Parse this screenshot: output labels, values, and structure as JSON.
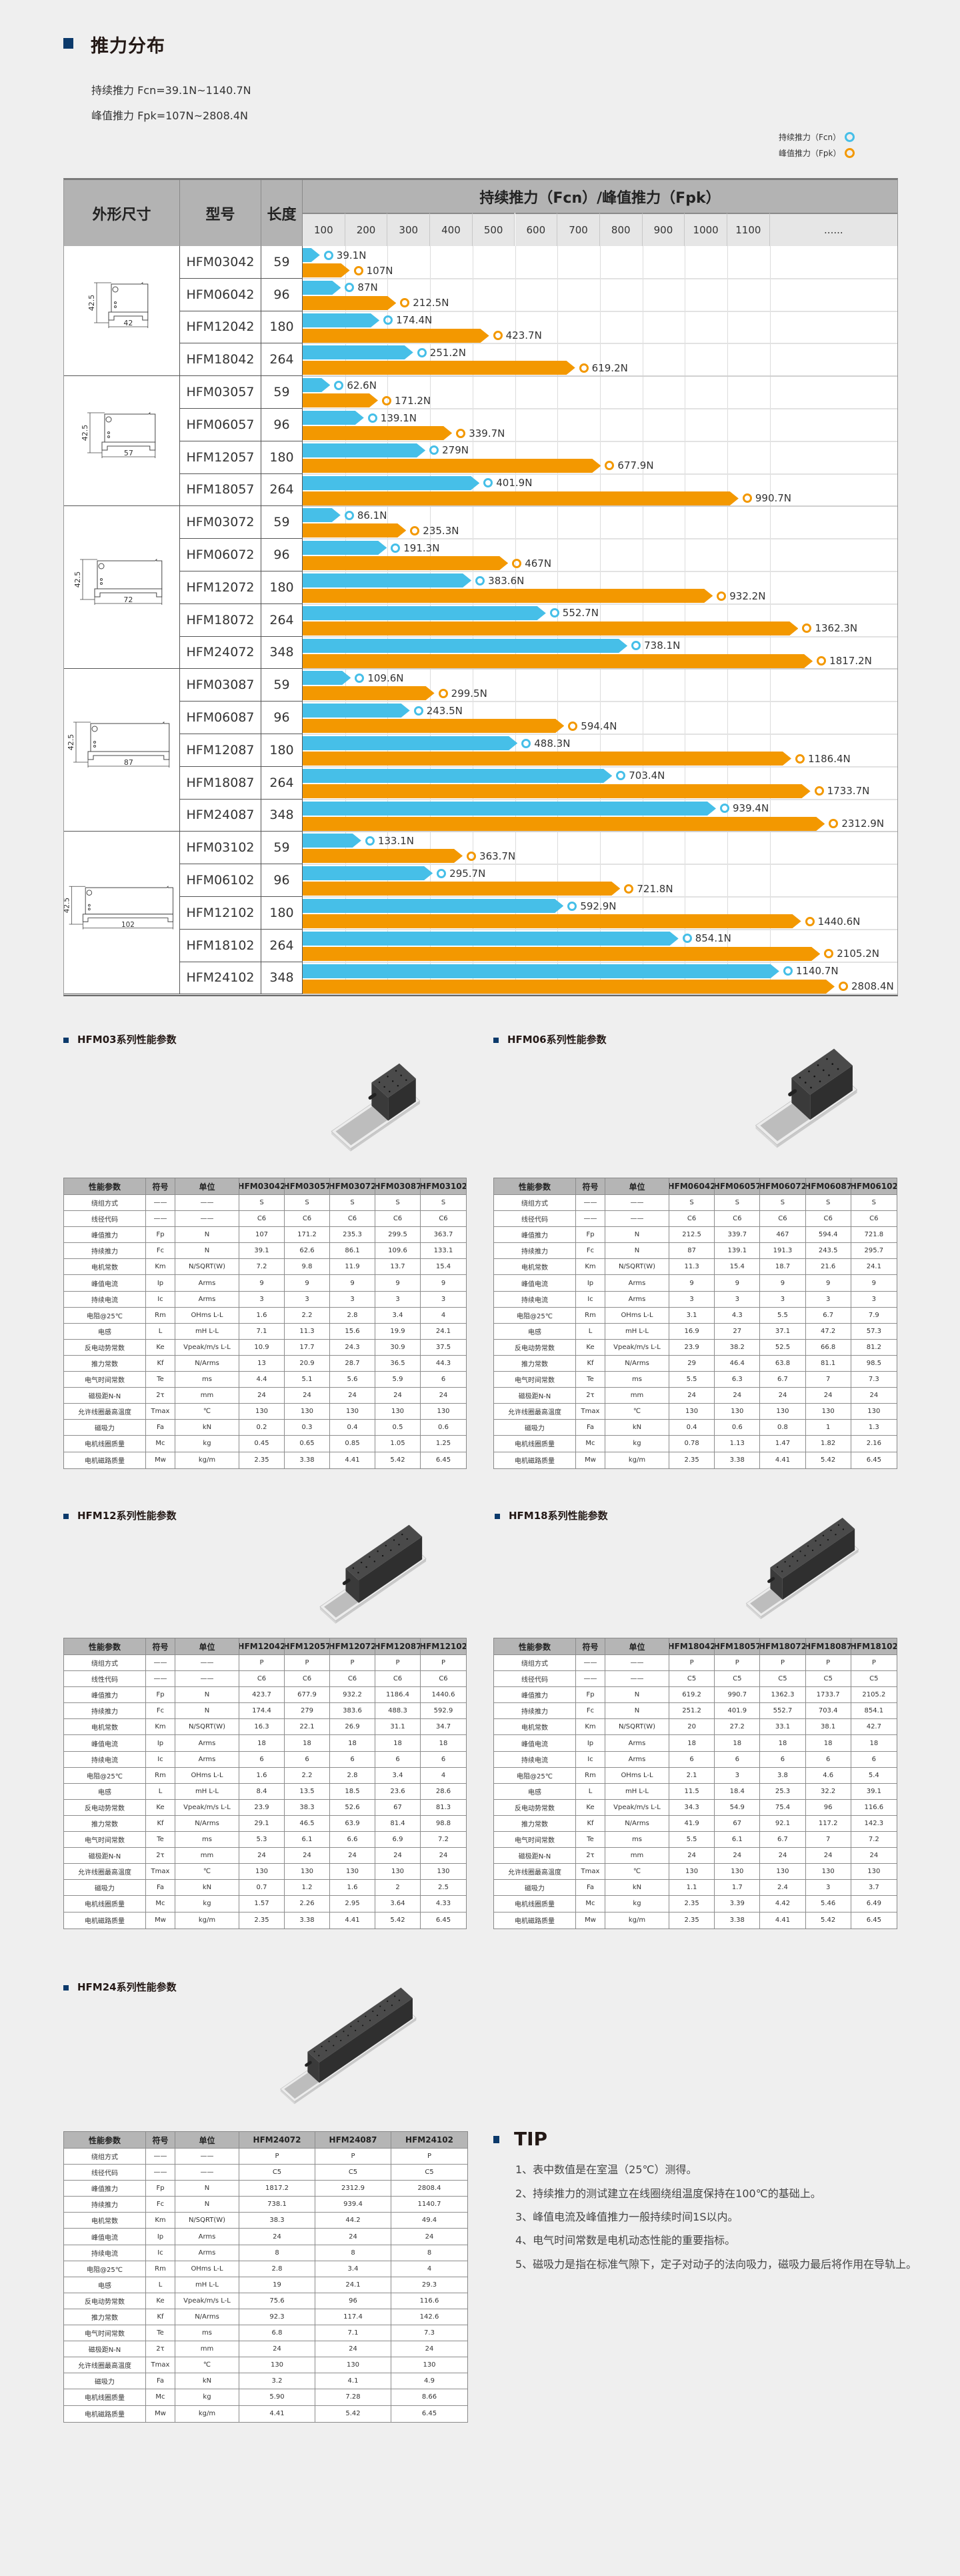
{
  "header": {
    "title": "推力分布",
    "fcn_range": "持续推力 Fcn=39.1N~1140.7N",
    "fpk_range": "峰值推力 Fpk=107N~2808.4N",
    "legend": [
      {
        "label": "持续推力（Fcn）",
        "color": "#46bfe8"
      },
      {
        "label": "峰值推力（Fpk）",
        "color": "#f39800"
      }
    ]
  },
  "chart_data": {
    "type": "bar",
    "title": "持续推力（Fcn）/峰值推力（Fpk）",
    "columns": {
      "shape": "外形尺寸",
      "model": "型号",
      "length": "长度"
    },
    "x_ticks": [
      "100",
      "200",
      "300",
      "400",
      "500",
      "600",
      "700",
      "800",
      "900",
      "1000",
      "1100",
      "......"
    ],
    "unit": "N",
    "orientation": "horizontal",
    "series": [
      {
        "key": "fcn",
        "name": "持续推力（Fcn）",
        "color": "#46bfe8"
      },
      {
        "key": "fpk",
        "name": "峰值推力（Fpk）",
        "color": "#f39800"
      }
    ],
    "groups": [
      {
        "dims": {
          "width": "42",
          "height": "42.5"
        },
        "rows": [
          {
            "model": "HFM03042",
            "length": "59",
            "fcn": 39.1,
            "fpk": 107
          },
          {
            "model": "HFM06042",
            "length": "96",
            "fcn": 87,
            "fpk": 212.5
          },
          {
            "model": "HFM12042",
            "length": "180",
            "fcn": 174.4,
            "fpk": 423.7
          },
          {
            "model": "HFM18042",
            "length": "264",
            "fcn": 251.2,
            "fpk": 619.2
          }
        ]
      },
      {
        "dims": {
          "width": "57",
          "height": "42.5"
        },
        "rows": [
          {
            "model": "HFM03057",
            "length": "59",
            "fcn": 62.6,
            "fpk": 171.2
          },
          {
            "model": "HFM06057",
            "length": "96",
            "fcn": 139.1,
            "fpk": 339.7
          },
          {
            "model": "HFM12057",
            "length": "180",
            "fcn": 279,
            "fpk": 677.9
          },
          {
            "model": "HFM18057",
            "length": "264",
            "fcn": 401.9,
            "fpk": 990.7
          }
        ]
      },
      {
        "dims": {
          "width": "72",
          "height": "42.5"
        },
        "rows": [
          {
            "model": "HFM03072",
            "length": "59",
            "fcn": 86.1,
            "fpk": 235.3
          },
          {
            "model": "HFM06072",
            "length": "96",
            "fcn": 191.3,
            "fpk": 467
          },
          {
            "model": "HFM12072",
            "length": "180",
            "fcn": 383.6,
            "fpk": 932.2
          },
          {
            "model": "HFM18072",
            "length": "264",
            "fcn": 552.7,
            "fpk": 1362.3
          },
          {
            "model": "HFM24072",
            "length": "348",
            "fcn": 738.1,
            "fpk": 1817.2
          }
        ]
      },
      {
        "dims": {
          "width": "87",
          "height": "42.5"
        },
        "rows": [
          {
            "model": "HFM03087",
            "length": "59",
            "fcn": 109.6,
            "fpk": 299.5
          },
          {
            "model": "HFM06087",
            "length": "96",
            "fcn": 243.5,
            "fpk": 594.4
          },
          {
            "model": "HFM12087",
            "length": "180",
            "fcn": 488.3,
            "fpk": 1186.4
          },
          {
            "model": "HFM18087",
            "length": "264",
            "fcn": 703.4,
            "fpk": 1733.7
          },
          {
            "model": "HFM24087",
            "length": "348",
            "fcn": 939.4,
            "fpk": 2312.9
          }
        ]
      },
      {
        "dims": {
          "width": "102",
          "height": "42.5"
        },
        "rows": [
          {
            "model": "HFM03102",
            "length": "59",
            "fcn": 133.1,
            "fpk": 363.7
          },
          {
            "model": "HFM06102",
            "length": "96",
            "fcn": 295.7,
            "fpk": 721.8
          },
          {
            "model": "HFM12102",
            "length": "180",
            "fcn": 592.9,
            "fpk": 1440.6
          },
          {
            "model": "HFM18102",
            "length": "264",
            "fcn": 854.1,
            "fpk": 2105.2
          },
          {
            "model": "HFM24102",
            "length": "348",
            "fcn": 1140.7,
            "fpk": 2808.4
          }
        ]
      }
    ]
  },
  "spec_tables": [
    {
      "title": "HFM03系列性能参数",
      "head": [
        "性能参数",
        "符号",
        "单位",
        "HFM03042",
        "HFM03057",
        "HFM03072",
        "HFM03087",
        "HFM03102"
      ],
      "rows": [
        [
          "绕组方式",
          "——",
          "——",
          "S",
          "S",
          "S",
          "S",
          "S"
        ],
        [
          "线径代码",
          "——",
          "——",
          "C6",
          "C6",
          "C6",
          "C6",
          "C6"
        ],
        [
          "峰值推力",
          "Fp",
          "N",
          "107",
          "171.2",
          "235.3",
          "299.5",
          "363.7"
        ],
        [
          "持续推力",
          "Fc",
          "N",
          "39.1",
          "62.6",
          "86.1",
          "109.6",
          "133.1"
        ],
        [
          "电机常数",
          "Km",
          "N/SQRT(W)",
          "7.2",
          "9.8",
          "11.9",
          "13.7",
          "15.4"
        ],
        [
          "峰值电流",
          "Ip",
          "Arms",
          "9",
          "9",
          "9",
          "9",
          "9"
        ],
        [
          "持续电流",
          "Ic",
          "Arms",
          "3",
          "3",
          "3",
          "3",
          "3"
        ],
        [
          "电阻@25℃",
          "Rm",
          "OHms L-L",
          "1.6",
          "2.2",
          "2.8",
          "3.4",
          "4"
        ],
        [
          "电感",
          "L",
          "mH L-L",
          "7.1",
          "11.3",
          "15.6",
          "19.9",
          "24.1"
        ],
        [
          "反电动势常数",
          "Ke",
          "Vpeak/m/s L-L",
          "10.9",
          "17.7",
          "24.3",
          "30.9",
          "37.5"
        ],
        [
          "推力常数",
          "Kf",
          "N/Arms",
          "13",
          "20.9",
          "28.7",
          "36.5",
          "44.3"
        ],
        [
          "电气时间常数",
          "Te",
          "ms",
          "4.4",
          "5.1",
          "5.6",
          "5.9",
          "6"
        ],
        [
          "磁极距N-N",
          "2τ",
          "mm",
          "24",
          "24",
          "24",
          "24",
          "24"
        ],
        [
          "允许线圈最高温度",
          "Tmax",
          "℃",
          "130",
          "130",
          "130",
          "130",
          "130"
        ],
        [
          "磁吸力",
          "Fa",
          "kN",
          "0.2",
          "0.3",
          "0.4",
          "0.5",
          "0.6"
        ],
        [
          "电机线圈质量",
          "Mc",
          "kg",
          "0.45",
          "0.65",
          "0.85",
          "1.05",
          "1.25"
        ],
        [
          "电机磁路质量",
          "Mw",
          "kg/m",
          "2.35",
          "3.38",
          "4.41",
          "5.42",
          "6.45"
        ]
      ]
    },
    {
      "title": "HFM06系列性能参数",
      "head": [
        "性能参数",
        "符号",
        "单位",
        "HFM06042",
        "HFM06057",
        "HFM06072",
        "HFM06087",
        "HFM06102"
      ],
      "rows": [
        [
          "绕组方式",
          "——",
          "——",
          "S",
          "S",
          "S",
          "S",
          "S"
        ],
        [
          "线径代码",
          "——",
          "——",
          "C6",
          "C6",
          "C6",
          "C6",
          "C6"
        ],
        [
          "峰值推力",
          "Fp",
          "N",
          "212.5",
          "339.7",
          "467",
          "594.4",
          "721.8"
        ],
        [
          "持续推力",
          "Fc",
          "N",
          "87",
          "139.1",
          "191.3",
          "243.5",
          "295.7"
        ],
        [
          "电机常数",
          "Km",
          "N/SQRT(W)",
          "11.3",
          "15.4",
          "18.7",
          "21.6",
          "24.1"
        ],
        [
          "峰值电流",
          "Ip",
          "Arms",
          "9",
          "9",
          "9",
          "9",
          "9"
        ],
        [
          "持续电流",
          "Ic",
          "Arms",
          "3",
          "3",
          "3",
          "3",
          "3"
        ],
        [
          "电阻@25℃",
          "Rm",
          "OHms L-L",
          "3.1",
          "4.3",
          "5.5",
          "6.7",
          "7.9"
        ],
        [
          "电感",
          "L",
          "mH L-L",
          "16.9",
          "27",
          "37.1",
          "47.2",
          "57.3"
        ],
        [
          "反电动势常数",
          "Ke",
          "Vpeak/m/s L-L",
          "23.9",
          "38.2",
          "52.5",
          "66.8",
          "81.2"
        ],
        [
          "推力常数",
          "Kf",
          "N/Arms",
          "29",
          "46.4",
          "63.8",
          "81.1",
          "98.5"
        ],
        [
          "电气时间常数",
          "Te",
          "ms",
          "5.5",
          "6.3",
          "6.7",
          "7",
          "7.3"
        ],
        [
          "磁极距N-N",
          "2τ",
          "mm",
          "24",
          "24",
          "24",
          "24",
          "24"
        ],
        [
          "允许线圈最高温度",
          "Tmax",
          "℃",
          "130",
          "130",
          "130",
          "130",
          "130"
        ],
        [
          "磁吸力",
          "Fa",
          "kN",
          "0.4",
          "0.6",
          "0.8",
          "1",
          "1.3"
        ],
        [
          "电机线圈质量",
          "Mc",
          "kg",
          "0.78",
          "1.13",
          "1.47",
          "1.82",
          "2.16"
        ],
        [
          "电机磁路质量",
          "Mw",
          "kg/m",
          "2.35",
          "3.38",
          "4.41",
          "5.42",
          "6.45"
        ]
      ]
    },
    {
      "title": "HFM12系列性能参数",
      "head": [
        "性能参数",
        "符号",
        "单位",
        "HFM12042",
        "HFM12057",
        "HFM12072",
        "HFM12087",
        "HFM12102"
      ],
      "rows": [
        [
          "绕组方式",
          "——",
          "——",
          "P",
          "P",
          "P",
          "P",
          "P"
        ],
        [
          "线性代码",
          "——",
          "——",
          "C6",
          "C6",
          "C6",
          "C6",
          "C6"
        ],
        [
          "峰值推力",
          "Fp",
          "N",
          "423.7",
          "677.9",
          "932.2",
          "1186.4",
          "1440.6"
        ],
        [
          "持续推力",
          "Fc",
          "N",
          "174.4",
          "279",
          "383.6",
          "488.3",
          "592.9"
        ],
        [
          "电机常数",
          "Km",
          "N/SQRT(W)",
          "16.3",
          "22.1",
          "26.9",
          "31.1",
          "34.7"
        ],
        [
          "峰值电流",
          "Ip",
          "Arms",
          "18",
          "18",
          "18",
          "18",
          "18"
        ],
        [
          "持续电流",
          "Ic",
          "Arms",
          "6",
          "6",
          "6",
          "6",
          "6"
        ],
        [
          "电阻@25℃",
          "Rm",
          "OHms L-L",
          "1.6",
          "2.2",
          "2.8",
          "3.4",
          "4"
        ],
        [
          "电感",
          "L",
          "mH L-L",
          "8.4",
          "13.5",
          "18.5",
          "23.6",
          "28.6"
        ],
        [
          "反电动势常数",
          "Ke",
          "Vpeak/m/s L-L",
          "23.9",
          "38.3",
          "52.6",
          "67",
          "81.3"
        ],
        [
          "推力常数",
          "Kf",
          "N/Arms",
          "29.1",
          "46.5",
          "63.9",
          "81.4",
          "98.8"
        ],
        [
          "电气时间常数",
          "Te",
          "ms",
          "5.3",
          "6.1",
          "6.6",
          "6.9",
          "7.2"
        ],
        [
          "磁极距N-N",
          "2τ",
          "mm",
          "24",
          "24",
          "24",
          "24",
          "24"
        ],
        [
          "允许线圈最高温度",
          "Tmax",
          "℃",
          "130",
          "130",
          "130",
          "130",
          "130"
        ],
        [
          "磁吸力",
          "Fa",
          "kN",
          "0.7",
          "1.2",
          "1.6",
          "2",
          "2.5"
        ],
        [
          "电机线圈质量",
          "Mc",
          "kg",
          "1.57",
          "2.26",
          "2.95",
          "3.64",
          "4.33"
        ],
        [
          "电机磁路质量",
          "Mw",
          "kg/m",
          "2.35",
          "3.38",
          "4.41",
          "5.42",
          "6.45"
        ]
      ]
    },
    {
      "title": "HFM18系列性能参数",
      "head": [
        "性能参数",
        "符号",
        "单位",
        "HFM18042",
        "HFM18057",
        "HFM18072",
        "HFM18087",
        "HFM18102"
      ],
      "rows": [
        [
          "绕组方式",
          "——",
          "——",
          "P",
          "P",
          "P",
          "P",
          "P"
        ],
        [
          "线径代码",
          "——",
          "——",
          "C5",
          "C5",
          "C5",
          "C5",
          "C5"
        ],
        [
          "峰值推力",
          "Fp",
          "N",
          "619.2",
          "990.7",
          "1362.3",
          "1733.7",
          "2105.2"
        ],
        [
          "持续推力",
          "Fc",
          "N",
          "251.2",
          "401.9",
          "552.7",
          "703.4",
          "854.1"
        ],
        [
          "电机常数",
          "Km",
          "N/SQRT(W)",
          "20",
          "27.2",
          "33.1",
          "38.1",
          "42.7"
        ],
        [
          "峰值电流",
          "Ip",
          "Arms",
          "18",
          "18",
          "18",
          "18",
          "18"
        ],
        [
          "持续电流",
          "Ic",
          "Arms",
          "6",
          "6",
          "6",
          "6",
          "6"
        ],
        [
          "电阻@25℃",
          "Rm",
          "OHms L-L",
          "2.1",
          "3",
          "3.8",
          "4.6",
          "5.4"
        ],
        [
          "电感",
          "L",
          "mH L-L",
          "11.5",
          "18.4",
          "25.3",
          "32.2",
          "39.1"
        ],
        [
          "反电动势常数",
          "Ke",
          "Vpeak/m/s L-L",
          "34.3",
          "54.9",
          "75.4",
          "96",
          "116.6"
        ],
        [
          "推力常数",
          "Kf",
          "N/Arms",
          "41.9",
          "67",
          "92.1",
          "117.2",
          "142.3"
        ],
        [
          "电气时间常数",
          "Te",
          "ms",
          "5.5",
          "6.1",
          "6.7",
          "7",
          "7.2"
        ],
        [
          "磁极距N-N",
          "2τ",
          "mm",
          "24",
          "24",
          "24",
          "24",
          "24"
        ],
        [
          "允许线圈最高温度",
          "Tmax",
          "℃",
          "130",
          "130",
          "130",
          "130",
          "130"
        ],
        [
          "磁吸力",
          "Fa",
          "kN",
          "1.1",
          "1.7",
          "2.4",
          "3",
          "3.7"
        ],
        [
          "电机线圈质量",
          "Mc",
          "kg",
          "2.35",
          "3.39",
          "4.42",
          "5.46",
          "6.49"
        ],
        [
          "电机磁路质量",
          "Mw",
          "kg/m",
          "2.35",
          "3.38",
          "4.41",
          "5.42",
          "6.45"
        ]
      ]
    },
    {
      "title": "HFM24系列性能参数",
      "head": [
        "性能参数",
        "符号",
        "单位",
        "HFM24072",
        "HFM24087",
        "HFM24102"
      ],
      "rows": [
        [
          "绕组方式",
          "——",
          "——",
          "P",
          "P",
          "P"
        ],
        [
          "线径代码",
          "——",
          "——",
          "C5",
          "C5",
          "C5"
        ],
        [
          "峰值推力",
          "Fp",
          "N",
          "1817.2",
          "2312.9",
          "2808.4"
        ],
        [
          "持续推力",
          "Fc",
          "N",
          "738.1",
          "939.4",
          "1140.7"
        ],
        [
          "电机常数",
          "Km",
          "N/SQRT(W)",
          "38.3",
          "44.2",
          "49.4"
        ],
        [
          "峰值电流",
          "Ip",
          "Arms",
          "24",
          "24",
          "24"
        ],
        [
          "持续电流",
          "Ic",
          "Arms",
          "8",
          "8",
          "8"
        ],
        [
          "电阻@25℃",
          "Rm",
          "OHms L-L",
          "2.8",
          "3.4",
          "4"
        ],
        [
          "电感",
          "L",
          "mH L-L",
          "19",
          "24.1",
          "29.3"
        ],
        [
          "反电动势常数",
          "Ke",
          "Vpeak/m/s L-L",
          "75.6",
          "96",
          "116.6"
        ],
        [
          "推力常数",
          "Kf",
          "N/Arms",
          "92.3",
          "117.4",
          "142.6"
        ],
        [
          "电气时间常数",
          "Te",
          "ms",
          "6.8",
          "7.1",
          "7.3"
        ],
        [
          "磁极距N-N",
          "2τ",
          "mm",
          "24",
          "24",
          "24"
        ],
        [
          "允许线圈最高温度",
          "Tmax",
          "℃",
          "130",
          "130",
          "130"
        ],
        [
          "磁吸力",
          "Fa",
          "kN",
          "3.2",
          "4.1",
          "4.9"
        ],
        [
          "电机线圈质量",
          "Mc",
          "kg",
          "5.90",
          "7.28",
          "8.66"
        ],
        [
          "电机磁路质量",
          "Mw",
          "kg/m",
          "4.41",
          "5.42",
          "6.45"
        ]
      ]
    }
  ],
  "tip": {
    "title": "TIP",
    "items": [
      "1、表中数值是在室温（25℃）测得。",
      "2、持续推力的测试建立在线圈绕组温度保持在100℃的基础上。",
      "3、峰值电流及峰值推力一般持续时间1S以内。",
      "4、电气时间常数是电机动态性能的重要指标。",
      "5、磁吸力是指在标准气隙下，定子对动子的法向吸力，磁吸力最后将作用在导轨上。"
    ]
  },
  "colors": {
    "accent": "#0c3a6b",
    "fcn": "#46bfe8",
    "fpk": "#f39800"
  }
}
